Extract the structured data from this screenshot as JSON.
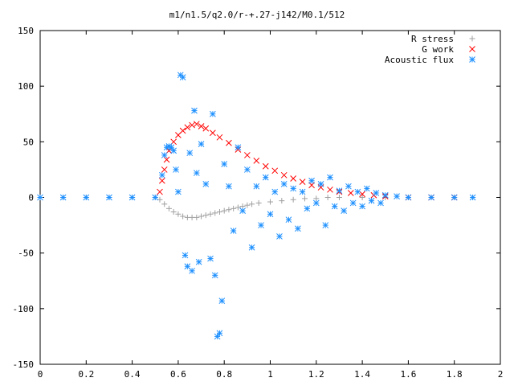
{
  "chart_data": {
    "type": "scatter",
    "title": "m1/n1.5/q2.0/r-+.27-j142/M0.1/512",
    "xlabel": "",
    "ylabel": "",
    "xlim": [
      0,
      2
    ],
    "ylim": [
      -150,
      150
    ],
    "x_ticks": [
      0,
      0.2,
      0.4,
      0.6,
      0.8,
      1,
      1.2,
      1.4,
      1.6,
      1.8,
      2
    ],
    "x_tick_labels": [
      "0",
      "0.2",
      "0.4",
      "0.6",
      "0.8",
      "1",
      "1.2",
      "1.4",
      "1.6",
      "1.8",
      "2"
    ],
    "y_ticks": [
      -150,
      -100,
      -50,
      0,
      50,
      100,
      150
    ],
    "y_tick_labels": [
      "-150",
      "-100",
      "-50",
      "0",
      "50",
      "100",
      "150"
    ],
    "grid": false,
    "legend_position": "top-right",
    "series": [
      {
        "name": "R stress",
        "marker": "plus",
        "color": "#a0a0a0",
        "points": [
          [
            0.0,
            0
          ],
          [
            0.1,
            0
          ],
          [
            0.2,
            0
          ],
          [
            0.3,
            0
          ],
          [
            0.4,
            0
          ],
          [
            0.5,
            0
          ],
          [
            0.52,
            -2
          ],
          [
            0.54,
            -6
          ],
          [
            0.56,
            -10
          ],
          [
            0.58,
            -13
          ],
          [
            0.6,
            -15
          ],
          [
            0.62,
            -17
          ],
          [
            0.64,
            -18
          ],
          [
            0.66,
            -18
          ],
          [
            0.68,
            -18
          ],
          [
            0.7,
            -17
          ],
          [
            0.72,
            -16
          ],
          [
            0.74,
            -15
          ],
          [
            0.76,
            -14
          ],
          [
            0.78,
            -13
          ],
          [
            0.8,
            -12
          ],
          [
            0.82,
            -11
          ],
          [
            0.84,
            -10
          ],
          [
            0.86,
            -9
          ],
          [
            0.88,
            -8
          ],
          [
            0.9,
            -7
          ],
          [
            0.92,
            -6
          ],
          [
            0.95,
            -5
          ],
          [
            1.0,
            -4
          ],
          [
            1.05,
            -3
          ],
          [
            1.1,
            -2
          ],
          [
            1.15,
            -1
          ],
          [
            1.2,
            -1
          ],
          [
            1.25,
            0
          ],
          [
            1.3,
            0
          ],
          [
            1.4,
            0
          ],
          [
            1.5,
            0
          ],
          [
            1.6,
            0
          ],
          [
            1.7,
            0
          ],
          [
            1.8,
            0
          ],
          [
            1.88,
            0
          ]
        ]
      },
      {
        "name": "G work",
        "marker": "cross",
        "color": "#ff0000",
        "points": [
          [
            0.52,
            5
          ],
          [
            0.53,
            15
          ],
          [
            0.54,
            25
          ],
          [
            0.55,
            34
          ],
          [
            0.56,
            42
          ],
          [
            0.58,
            50
          ],
          [
            0.6,
            56
          ],
          [
            0.62,
            60
          ],
          [
            0.64,
            63
          ],
          [
            0.66,
            65
          ],
          [
            0.68,
            66
          ],
          [
            0.7,
            64
          ],
          [
            0.72,
            62
          ],
          [
            0.75,
            58
          ],
          [
            0.78,
            54
          ],
          [
            0.82,
            49
          ],
          [
            0.86,
            43
          ],
          [
            0.9,
            38
          ],
          [
            0.94,
            33
          ],
          [
            0.98,
            28
          ],
          [
            1.02,
            24
          ],
          [
            1.06,
            20
          ],
          [
            1.1,
            17
          ],
          [
            1.14,
            14
          ],
          [
            1.18,
            11
          ],
          [
            1.22,
            9
          ],
          [
            1.26,
            7
          ],
          [
            1.3,
            5
          ],
          [
            1.35,
            4
          ],
          [
            1.4,
            3
          ],
          [
            1.45,
            2
          ],
          [
            1.5,
            1
          ],
          [
            1.6,
            0
          ],
          [
            1.7,
            0
          ],
          [
            1.8,
            0
          ]
        ]
      },
      {
        "name": "Acoustic flux",
        "marker": "star",
        "color": "#1e90ff",
        "points": [
          [
            0.0,
            0
          ],
          [
            0.1,
            0
          ],
          [
            0.2,
            0
          ],
          [
            0.3,
            0
          ],
          [
            0.4,
            0
          ],
          [
            0.5,
            0
          ],
          [
            0.53,
            20
          ],
          [
            0.54,
            38
          ],
          [
            0.55,
            45
          ],
          [
            0.56,
            46
          ],
          [
            0.57,
            45
          ],
          [
            0.58,
            42
          ],
          [
            0.59,
            25
          ],
          [
            0.6,
            5
          ],
          [
            0.61,
            110
          ],
          [
            0.62,
            108
          ],
          [
            0.63,
            -52
          ],
          [
            0.64,
            -62
          ],
          [
            0.65,
            40
          ],
          [
            0.66,
            -66
          ],
          [
            0.67,
            78
          ],
          [
            0.68,
            22
          ],
          [
            0.69,
            -58
          ],
          [
            0.7,
            48
          ],
          [
            0.72,
            12
          ],
          [
            0.74,
            -55
          ],
          [
            0.75,
            75
          ],
          [
            0.76,
            -70
          ],
          [
            0.77,
            -125
          ],
          [
            0.78,
            -122
          ],
          [
            0.79,
            -93
          ],
          [
            0.8,
            30
          ],
          [
            0.82,
            10
          ],
          [
            0.84,
            -30
          ],
          [
            0.86,
            45
          ],
          [
            0.88,
            -12
          ],
          [
            0.9,
            25
          ],
          [
            0.92,
            -45
          ],
          [
            0.94,
            10
          ],
          [
            0.96,
            -25
          ],
          [
            0.98,
            18
          ],
          [
            1.0,
            -15
          ],
          [
            1.02,
            5
          ],
          [
            1.04,
            -35
          ],
          [
            1.06,
            12
          ],
          [
            1.08,
            -20
          ],
          [
            1.1,
            8
          ],
          [
            1.12,
            -28
          ],
          [
            1.14,
            5
          ],
          [
            1.16,
            -10
          ],
          [
            1.18,
            15
          ],
          [
            1.2,
            -5
          ],
          [
            1.22,
            12
          ],
          [
            1.24,
            -25
          ],
          [
            1.26,
            18
          ],
          [
            1.28,
            -8
          ],
          [
            1.3,
            6
          ],
          [
            1.32,
            -12
          ],
          [
            1.34,
            10
          ],
          [
            1.36,
            -5
          ],
          [
            1.38,
            5
          ],
          [
            1.4,
            -8
          ],
          [
            1.42,
            8
          ],
          [
            1.44,
            -3
          ],
          [
            1.46,
            4
          ],
          [
            1.48,
            -5
          ],
          [
            1.5,
            2
          ],
          [
            1.55,
            1
          ],
          [
            1.6,
            0
          ],
          [
            1.7,
            0
          ],
          [
            1.8,
            0
          ],
          [
            1.88,
            0
          ]
        ]
      }
    ]
  }
}
